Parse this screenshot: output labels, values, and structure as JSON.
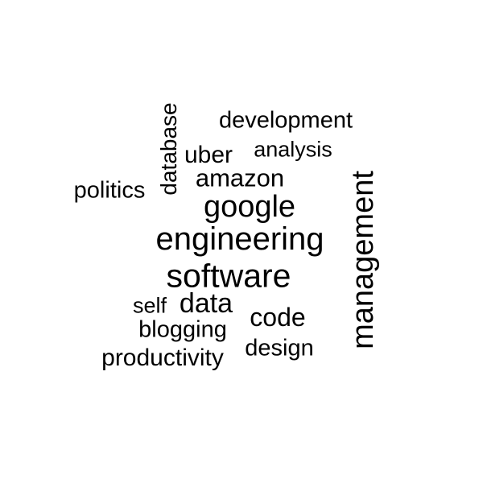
{
  "words": {
    "development": "development",
    "database": "database",
    "analysis": "analysis",
    "uber": "uber",
    "management": "management",
    "amazon": "amazon",
    "politics": "politics",
    "google": "google",
    "engineering": "engineering",
    "software": "software",
    "self": "self",
    "data": "data",
    "code": "code",
    "blogging": "blogging",
    "design": "design",
    "productivity": "productivity"
  },
  "colors": {
    "background": "#ffffff",
    "text": "#000000"
  }
}
